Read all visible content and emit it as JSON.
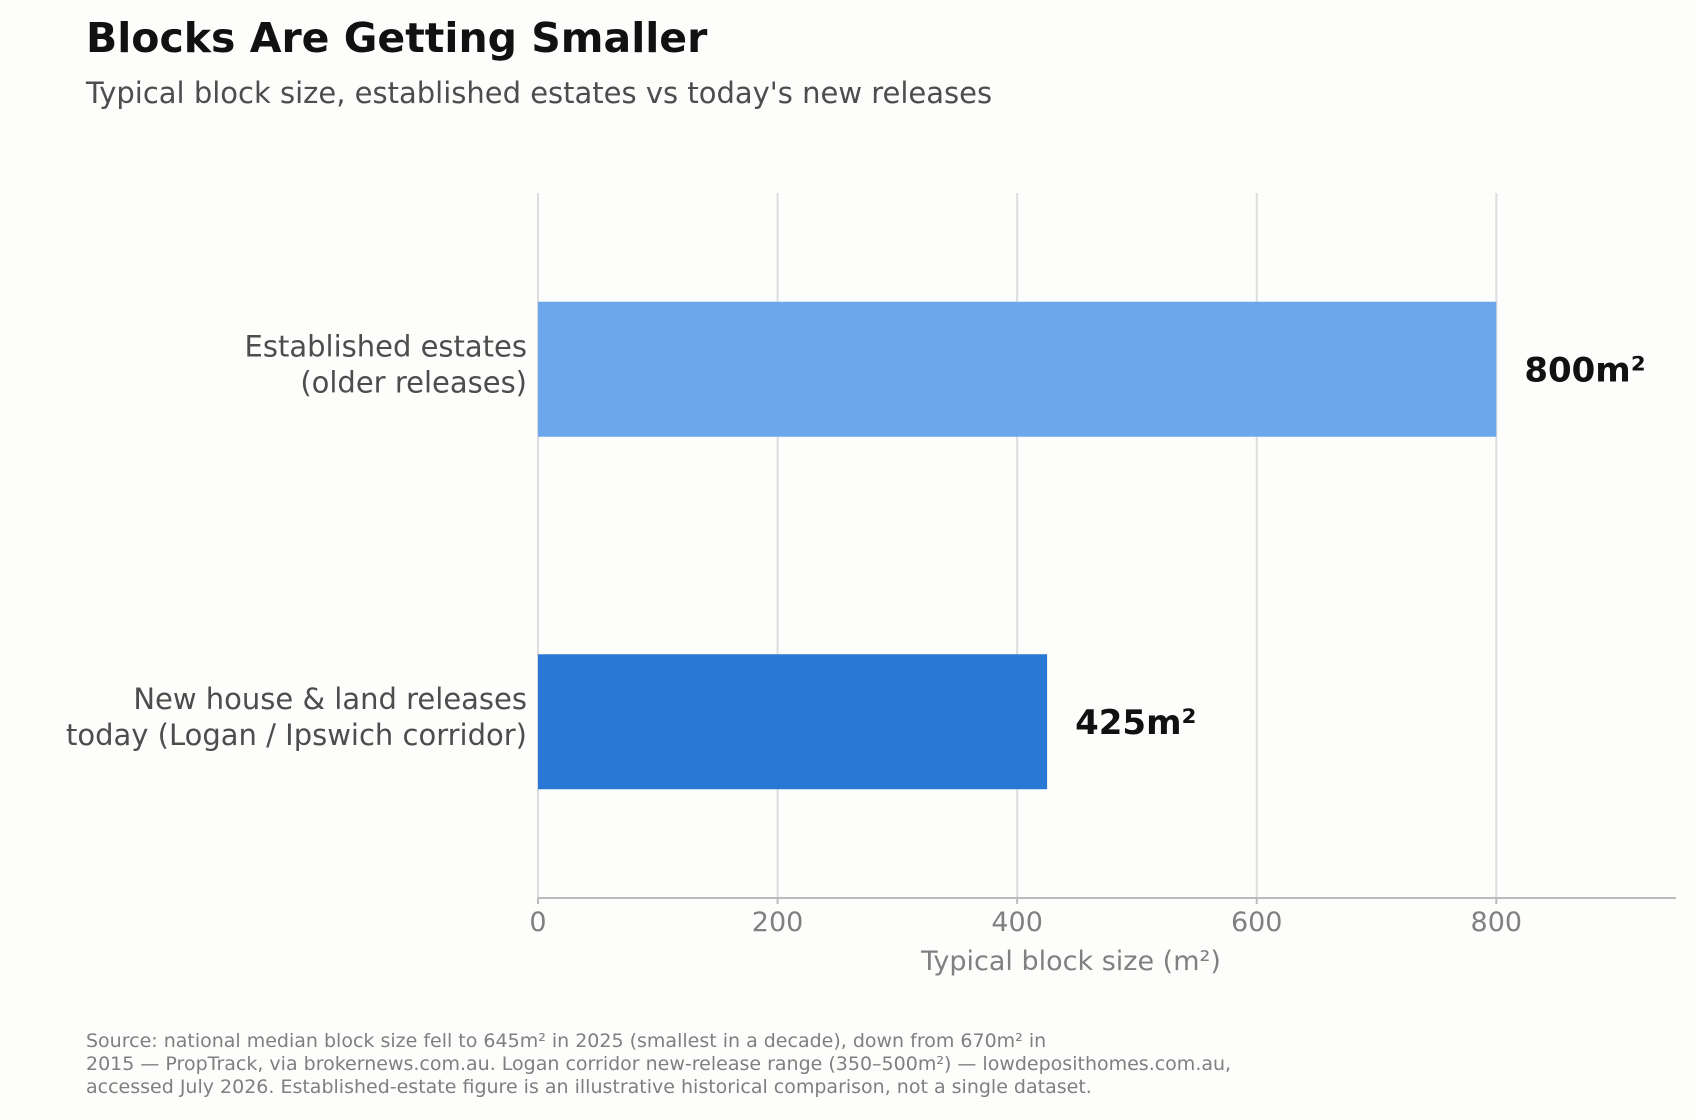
{
  "title": "Blocks Are Getting Smaller",
  "subtitle": "Typical block size, established estates vs today's new releases",
  "source_lines": [
    "Source: national median block size fell to 645m² in 2025 (smallest in a decade), down from 670m² in",
    "2015 — PropTrack, via brokernews.com.au. Logan corridor new-release range (350–500m²) — lowdeposithomes.com.au,",
    "accessed July 2026. Established-estate figure is an illustrative historical comparison, not a single dataset."
  ],
  "chart_data": {
    "type": "bar",
    "orientation": "horizontal",
    "categories": [
      [
        "Established estates",
        "(older releases)"
      ],
      [
        "New house & land releases",
        "today (Logan / Ipswich corridor)"
      ]
    ],
    "values": [
      800,
      425
    ],
    "data_labels": [
      "800m²",
      "425m²"
    ],
    "colors": [
      "#6ca7eb",
      "#2a78d5"
    ],
    "xlabel": "Typical block size (m²)",
    "ylabel": "",
    "xlim": [
      0,
      950
    ],
    "xticks": [
      0,
      200,
      400,
      600,
      800
    ],
    "grid": "vertical",
    "legend": "none"
  }
}
